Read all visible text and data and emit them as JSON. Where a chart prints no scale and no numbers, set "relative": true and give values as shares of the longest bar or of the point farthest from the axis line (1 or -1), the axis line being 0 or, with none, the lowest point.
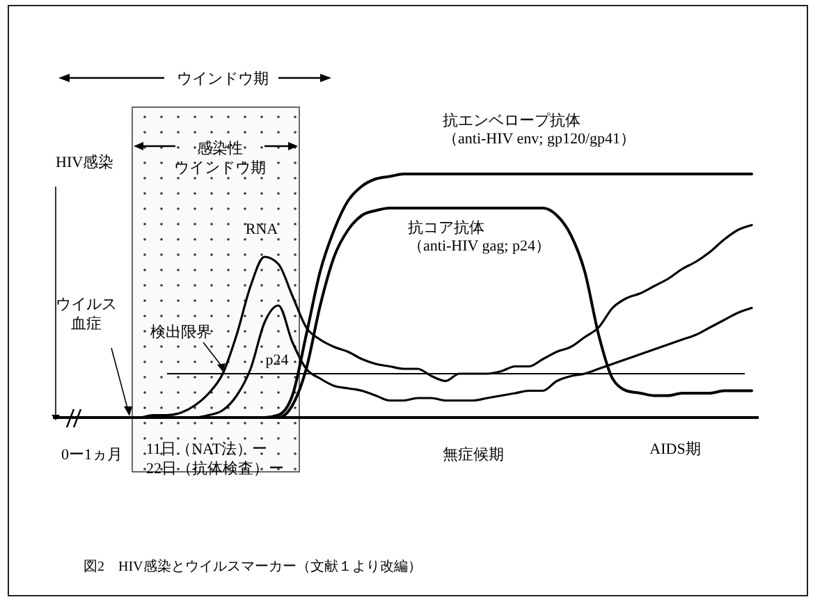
{
  "chart_data": {
    "type": "line",
    "title": "図2　HIV感染とウイルスマーカー（文献１より改編）",
    "relative": true,
    "line_style": "solid",
    "categories": [
      null,
      null,
      null,
      null,
      null,
      null,
      null,
      null,
      null,
      null,
      null,
      null,
      null,
      null,
      null,
      null,
      null,
      null,
      null,
      null,
      null,
      null,
      null,
      null,
      null,
      null,
      null,
      null,
      null,
      null,
      null,
      null,
      null,
      null,
      null,
      null,
      null,
      null,
      null,
      null,
      null,
      null,
      null,
      null,
      null,
      null,
      null,
      null,
      null,
      null,
      null
    ],
    "series": [
      {
        "name": "RNA",
        "color": "#000000",
        "values": [
          0,
          0,
          0,
          0,
          0,
          0,
          0,
          0.01,
          0.01,
          0.02,
          0.05,
          0.1,
          0.18,
          0.34,
          0.54,
          0.66,
          0.63,
          0.5,
          0.37,
          0.32,
          0.29,
          0.27,
          0.24,
          0.22,
          0.21,
          0.2,
          0.2,
          0.17,
          0.15,
          0.18,
          0.18,
          0.18,
          0.19,
          0.21,
          0.21,
          0.24,
          0.27,
          0.29,
          0.33,
          0.37,
          0.45,
          0.49,
          0.51,
          0.54,
          0.57,
          0.61,
          0.64,
          0.68,
          0.73,
          0.77,
          0.79
        ]
      },
      {
        "name": "p24",
        "color": "#000000",
        "values": [
          0,
          0,
          0,
          0,
          0,
          0,
          0,
          0,
          0,
          0,
          0,
          0.01,
          0.03,
          0.09,
          0.2,
          0.39,
          0.46,
          0.31,
          0.2,
          0.16,
          0.13,
          0.12,
          0.11,
          0.09,
          0.07,
          0.07,
          0.08,
          0.08,
          0.07,
          0.07,
          0.07,
          0.08,
          0.09,
          0.1,
          0.11,
          0.11,
          0.15,
          0.17,
          0.18,
          0.2,
          0.22,
          0.24,
          0.26,
          0.28,
          0.3,
          0.32,
          0.34,
          0.37,
          0.4,
          0.43,
          0.45
        ]
      },
      {
        "name": "抗エンベロープ抗体（anti-HIV env; gp120/gp41）",
        "color": "#000000",
        "values": [
          0,
          0,
          0,
          0,
          0,
          0,
          0,
          0,
          0,
          0,
          0,
          0,
          0,
          0,
          0,
          0,
          0.01,
          0.09,
          0.34,
          0.6,
          0.77,
          0.89,
          0.95,
          0.98,
          0.99,
          1,
          1,
          1,
          1,
          1,
          1,
          1,
          1,
          1,
          1,
          1,
          1,
          1,
          1,
          1,
          1,
          1,
          1,
          1,
          1,
          1,
          1,
          1,
          1,
          1,
          1
        ]
      },
      {
        "name": "抗コア抗体（anti-HIV gag; p24）",
        "color": "#000000",
        "values": [
          0,
          0,
          0,
          0,
          0,
          0,
          0,
          0,
          0,
          0,
          0,
          0,
          0,
          0,
          0,
          0,
          0,
          0.05,
          0.2,
          0.46,
          0.66,
          0.77,
          0.83,
          0.85,
          0.86,
          0.86,
          0.86,
          0.86,
          0.86,
          0.86,
          0.86,
          0.86,
          0.86,
          0.86,
          0.86,
          0.86,
          0.83,
          0.75,
          0.6,
          0.34,
          0.16,
          0.11,
          0.1,
          0.09,
          0.09,
          0.1,
          0.1,
          0.1,
          0.11,
          0.11,
          0.11
        ]
      }
    ],
    "ref_lines": [
      {
        "axis": "y",
        "value": 0.18,
        "label": "検出限界",
        "color": "#000000",
        "line_style": "solid"
      }
    ],
    "annotations": [
      "ウインドウ期",
      "感染性",
      "ウインドウ期",
      "HIV感染",
      "ウイルス",
      "血症",
      "0ー1ヵ月",
      "11日（NAT法）ー",
      "22日（抗体検査）ー",
      "無症候期",
      "AIDS期"
    ]
  }
}
